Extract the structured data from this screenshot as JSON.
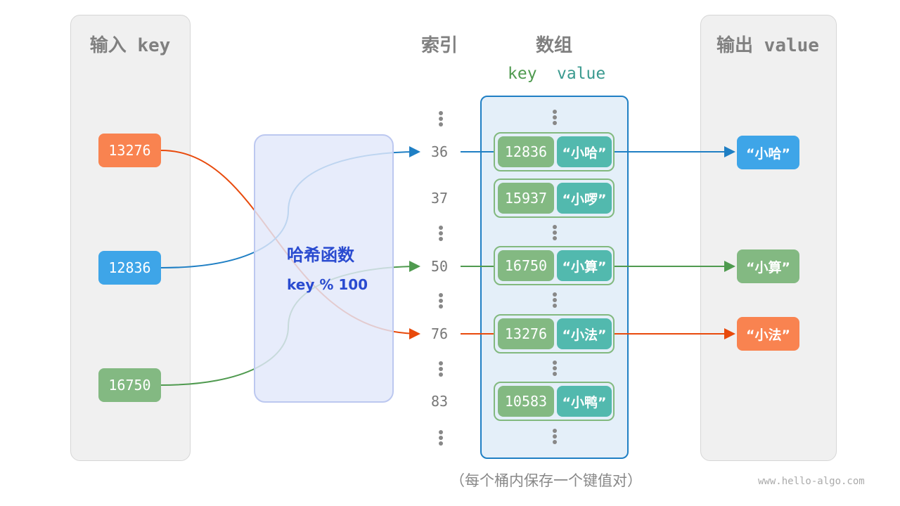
{
  "input": {
    "title": "输入 key",
    "keys": [
      {
        "value": "13276",
        "color": "#f98350"
      },
      {
        "value": "12836",
        "color": "#3ea5e8"
      },
      {
        "value": "16750",
        "color": "#83b982"
      }
    ]
  },
  "hash": {
    "title": "哈希函数",
    "formula": "key % 100"
  },
  "index": {
    "title": "索引",
    "values": [
      "36",
      "37",
      "50",
      "76",
      "83"
    ]
  },
  "array": {
    "title": "数组",
    "key_label": "key",
    "value_label": "value",
    "pairs": [
      {
        "key": "12836",
        "value": "“小哈”"
      },
      {
        "key": "15937",
        "value": "“小啰”"
      },
      {
        "key": "16750",
        "value": "“小算”"
      },
      {
        "key": "13276",
        "value": "“小法”"
      },
      {
        "key": "10583",
        "value": "“小鸭”"
      }
    ]
  },
  "output": {
    "title": "输出 value",
    "values": [
      {
        "value": "“小哈”",
        "color": "#3ea5e8"
      },
      {
        "value": "“小算”",
        "color": "#83b982"
      },
      {
        "value": "“小法”",
        "color": "#f98350"
      }
    ]
  },
  "caption": "（每个桶内保存一个键值对）",
  "watermark": "www.hello-algo.com"
}
